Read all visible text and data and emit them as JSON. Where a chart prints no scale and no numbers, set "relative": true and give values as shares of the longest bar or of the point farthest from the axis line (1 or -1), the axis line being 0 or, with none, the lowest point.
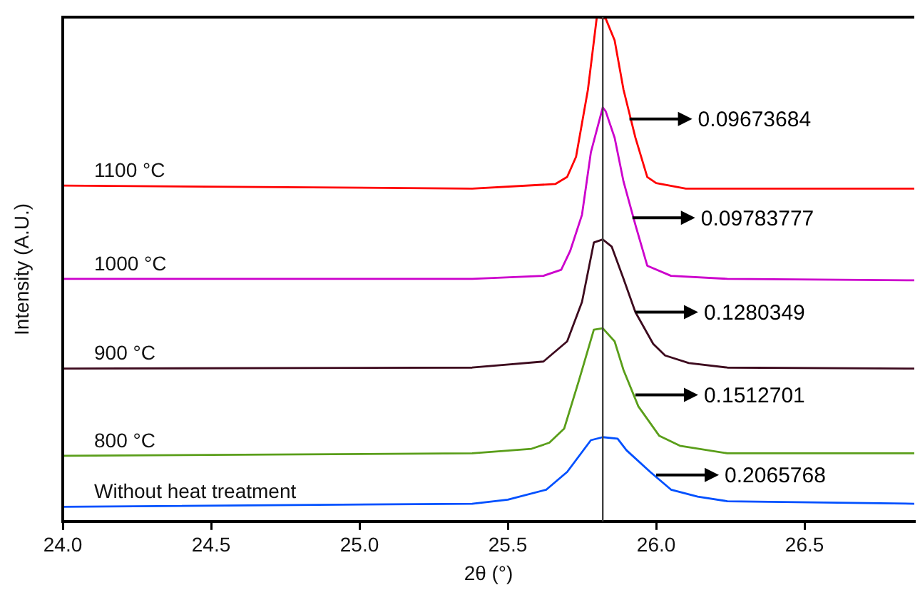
{
  "chart_data": {
    "type": "line",
    "relative": true,
    "xlabel": "2θ (°)",
    "ylabel": "Intensity (A.U.)",
    "xlim": [
      24,
      26.87
    ],
    "xticks": [
      {
        "value": 24,
        "label": "24.0"
      },
      24.5,
      {
        "value": 25,
        "label": "25.0"
      },
      25.5,
      {
        "value": 26,
        "label": "26.0"
      },
      26.5
    ],
    "grid": false,
    "legend": false,
    "marker": "none",
    "line_style": "solid",
    "series": [
      {
        "name": "1100 °C",
        "color": "#ff0000",
        "x": [
          24,
          25.38,
          25.66,
          25.7,
          25.73,
          25.77,
          25.8,
          25.83,
          25.86,
          25.89,
          25.93,
          25.97,
          26.0,
          26.1,
          26.24,
          26.87
        ],
        "values": [
          0.666,
          0.66,
          0.669,
          0.683,
          0.723,
          0.856,
          1,
          0.997,
          0.954,
          0.856,
          0.761,
          0.683,
          0.671,
          0.66,
          0.66,
          0.66
        ]
      },
      {
        "name": "1000 °C",
        "color": "#cc00cc",
        "x": [
          24,
          25.38,
          25.62,
          25.68,
          25.71,
          25.75,
          25.78,
          25.82,
          25.83,
          25.86,
          25.89,
          25.93,
          25.97,
          26.05,
          26.24,
          26.87
        ],
        "values": [
          0.481,
          0.481,
          0.487,
          0.499,
          0.536,
          0.608,
          0.732,
          0.821,
          0.813,
          0.761,
          0.674,
          0.588,
          0.507,
          0.487,
          0.481,
          0.478
        ]
      },
      {
        "name": "900 °C",
        "color": "#3d0a1e",
        "x": [
          24,
          25.38,
          25.62,
          25.7,
          25.75,
          25.79,
          25.82,
          25.85,
          25.89,
          25.93,
          25.99,
          26.03,
          26.11,
          26.24,
          26.87
        ],
        "values": [
          0.303,
          0.305,
          0.317,
          0.357,
          0.435,
          0.553,
          0.559,
          0.545,
          0.481,
          0.415,
          0.352,
          0.329,
          0.314,
          0.305,
          0.303
        ]
      },
      {
        "name": "800 °C",
        "color": "#5a9e1a",
        "x": [
          24,
          25.38,
          25.58,
          25.64,
          25.69,
          25.74,
          25.79,
          25.82,
          25.86,
          25.89,
          25.94,
          26.01,
          26.08,
          26.24,
          26.87
        ],
        "values": [
          0.13,
          0.135,
          0.144,
          0.156,
          0.184,
          0.28,
          0.38,
          0.383,
          0.357,
          0.3,
          0.228,
          0.17,
          0.15,
          0.135,
          0.135
        ]
      },
      {
        "name": "Without heat treatment",
        "color": "#0050ff",
        "x": [
          24,
          25.38,
          25.5,
          25.63,
          25.7,
          25.78,
          25.82,
          25.87,
          25.9,
          25.98,
          26.05,
          26.14,
          26.24,
          26.87
        ],
        "values": [
          0.029,
          0.035,
          0.043,
          0.063,
          0.098,
          0.161,
          0.167,
          0.164,
          0.141,
          0.098,
          0.063,
          0.049,
          0.04,
          0.035
        ]
      }
    ],
    "ref_lines": [
      {
        "axis": "x",
        "value": 25.82,
        "color": "#404040"
      }
    ],
    "annotations": [
      {
        "text": "0.09673684",
        "x": 25.91,
        "y": 0.798
      },
      {
        "text": "0.09783777",
        "x": 25.92,
        "y": 0.602
      },
      {
        "text": "0.1280349",
        "x": 25.93,
        "y": 0.415
      },
      {
        "text": "0.1512701",
        "x": 25.93,
        "y": 0.251
      },
      {
        "text": "0.2065768",
        "x": 26.0,
        "y": 0.092
      }
    ]
  }
}
